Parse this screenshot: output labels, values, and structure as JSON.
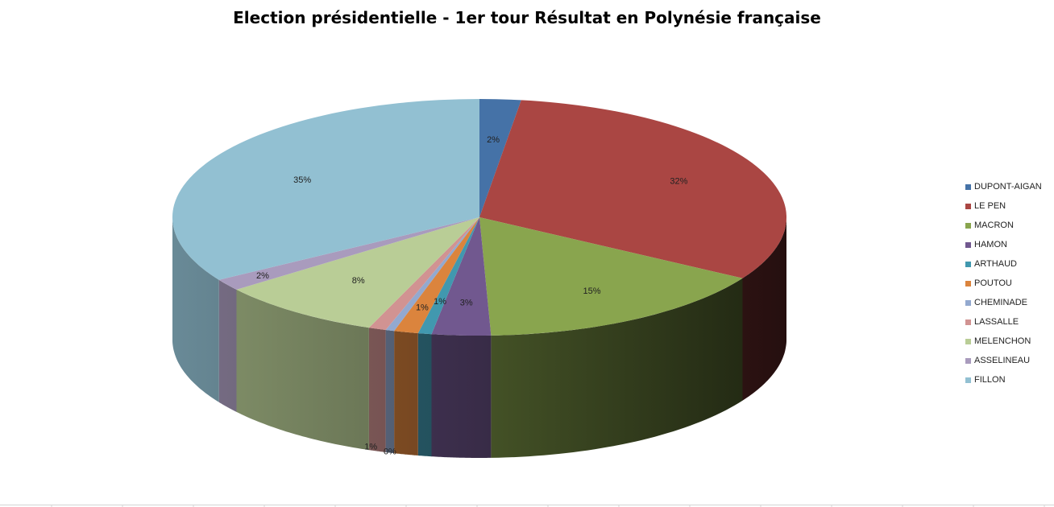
{
  "chart_data": {
    "type": "pie",
    "title": "Election présidentielle - 1er tour Résultat en Polynésie française",
    "categories": [
      "DUPONT-AIGAN",
      "LE PEN",
      "MACRON",
      "HAMON",
      "ARTHAUD",
      "POUTOU",
      "CHEMINADE",
      "LASSALLE",
      "MELENCHON",
      "ASSELINEAU",
      "FILLON"
    ],
    "values": [
      2,
      32,
      15,
      3,
      1,
      1,
      0,
      1,
      8,
      2,
      35
    ],
    "labels": [
      "2%",
      "32%",
      "15%",
      "3%",
      "1%",
      "1%",
      "0%",
      "1%",
      "8%",
      "2%",
      "35%"
    ],
    "colors": [
      "#4572A7",
      "#AA4643",
      "#89A54E",
      "#71588F",
      "#4198AF",
      "#DB843D",
      "#93A9CF",
      "#D19392",
      "#B9CD96",
      "#A99BBD",
      "#92C0D2"
    ],
    "legend_position": "right",
    "grid": false
  }
}
